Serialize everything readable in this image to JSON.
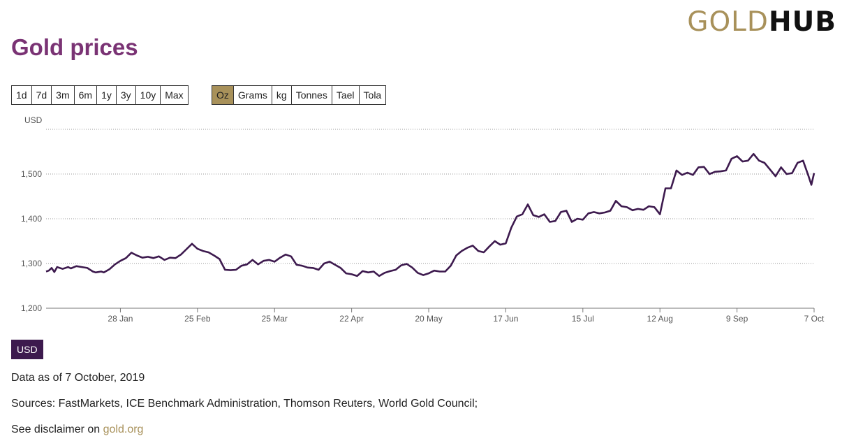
{
  "logo": {
    "part1": "GOLD",
    "part2": "HUB"
  },
  "title": "Gold prices",
  "periods": [
    "1d",
    "7d",
    "3m",
    "6m",
    "1y",
    "3y",
    "10y",
    "Max"
  ],
  "units": [
    "Oz",
    "Grams",
    "kg",
    "Tonnes",
    "Tael",
    "Tola"
  ],
  "active_unit": "Oz",
  "currency": "USD",
  "footer": {
    "as_of_prefix": "Data as of",
    "as_of_date": "7 October, 2019",
    "sources": "Sources: FastMarkets, ICE Benchmark Administration, Thomson Reuters, World Gold Council;",
    "disclaimer_prefix": "See disclaimer on",
    "disclaimer_link": "gold.org"
  },
  "colors": {
    "line": "#3d1a4e",
    "title": "#7a3374",
    "accent": "#a8915a",
    "badge": "#3d1a4e"
  },
  "chart_data": {
    "type": "line",
    "ylabel": "USD",
    "ylim": [
      1200,
      1600
    ],
    "yticks": [
      1200,
      1300,
      1400,
      1500
    ],
    "ytick_labels": [
      "1,200",
      "1,300",
      "1,400",
      "1,500"
    ],
    "grid": true,
    "x_start": "2019-01-01",
    "x_end": "2019-10-07",
    "xticks": [
      {
        "date": "2019-01-28",
        "label": "28 Jan"
      },
      {
        "date": "2019-02-25",
        "label": "25 Feb"
      },
      {
        "date": "2019-03-25",
        "label": "25 Mar"
      },
      {
        "date": "2019-04-22",
        "label": "22 Apr"
      },
      {
        "date": "2019-05-20",
        "label": "20 May"
      },
      {
        "date": "2019-06-17",
        "label": "17 Jun"
      },
      {
        "date": "2019-07-15",
        "label": "15 Jul"
      },
      {
        "date": "2019-08-12",
        "label": "12 Aug"
      },
      {
        "date": "2019-09-09",
        "label": "9 Sep"
      },
      {
        "date": "2019-10-07",
        "label": "7 Oct"
      }
    ],
    "series": [
      {
        "name": "USD",
        "points": [
          [
            "2019-01-01",
            1282
          ],
          [
            "2019-01-02",
            1284
          ],
          [
            "2019-01-03",
            1290
          ],
          [
            "2019-01-04",
            1281
          ],
          [
            "2019-01-05",
            1292
          ],
          [
            "2019-01-07",
            1288
          ],
          [
            "2019-01-09",
            1292
          ],
          [
            "2019-01-10",
            1289
          ],
          [
            "2019-01-12",
            1294
          ],
          [
            "2019-01-14",
            1292
          ],
          [
            "2019-01-16",
            1290
          ],
          [
            "2019-01-18",
            1282
          ],
          [
            "2019-01-19",
            1280
          ],
          [
            "2019-01-21",
            1282
          ],
          [
            "2019-01-22",
            1280
          ],
          [
            "2019-01-24",
            1287
          ],
          [
            "2019-01-26",
            1298
          ],
          [
            "2019-01-28",
            1306
          ],
          [
            "2019-01-30",
            1312
          ],
          [
            "2019-02-01",
            1324
          ],
          [
            "2019-02-03",
            1318
          ],
          [
            "2019-02-05",
            1313
          ],
          [
            "2019-02-07",
            1315
          ],
          [
            "2019-02-09",
            1312
          ],
          [
            "2019-02-11",
            1316
          ],
          [
            "2019-02-13",
            1308
          ],
          [
            "2019-02-15",
            1313
          ],
          [
            "2019-02-17",
            1312
          ],
          [
            "2019-02-19",
            1320
          ],
          [
            "2019-02-21",
            1332
          ],
          [
            "2019-02-23",
            1344
          ],
          [
            "2019-02-25",
            1333
          ],
          [
            "2019-02-27",
            1328
          ],
          [
            "2019-03-01",
            1325
          ],
          [
            "2019-03-03",
            1318
          ],
          [
            "2019-03-05",
            1310
          ],
          [
            "2019-03-07",
            1286
          ],
          [
            "2019-03-09",
            1285
          ],
          [
            "2019-03-11",
            1286
          ],
          [
            "2019-03-13",
            1295
          ],
          [
            "2019-03-15",
            1298
          ],
          [
            "2019-03-17",
            1308
          ],
          [
            "2019-03-19",
            1298
          ],
          [
            "2019-03-21",
            1306
          ],
          [
            "2019-03-23",
            1308
          ],
          [
            "2019-03-25",
            1304
          ],
          [
            "2019-03-27",
            1313
          ],
          [
            "2019-03-29",
            1320
          ],
          [
            "2019-03-31",
            1316
          ],
          [
            "2019-04-02",
            1297
          ],
          [
            "2019-04-04",
            1295
          ],
          [
            "2019-04-06",
            1291
          ],
          [
            "2019-04-08",
            1290
          ],
          [
            "2019-04-10",
            1286
          ],
          [
            "2019-04-12",
            1300
          ],
          [
            "2019-04-14",
            1304
          ],
          [
            "2019-04-16",
            1297
          ],
          [
            "2019-04-18",
            1290
          ],
          [
            "2019-04-20",
            1278
          ],
          [
            "2019-04-22",
            1276
          ],
          [
            "2019-04-24",
            1272
          ],
          [
            "2019-04-26",
            1283
          ],
          [
            "2019-04-28",
            1280
          ],
          [
            "2019-04-30",
            1282
          ],
          [
            "2019-05-02",
            1272
          ],
          [
            "2019-05-04",
            1279
          ],
          [
            "2019-05-06",
            1283
          ],
          [
            "2019-05-08",
            1286
          ],
          [
            "2019-05-10",
            1296
          ],
          [
            "2019-05-12",
            1299
          ],
          [
            "2019-05-14",
            1291
          ],
          [
            "2019-05-16",
            1279
          ],
          [
            "2019-05-18",
            1274
          ],
          [
            "2019-05-20",
            1278
          ],
          [
            "2019-05-22",
            1284
          ],
          [
            "2019-05-24",
            1282
          ],
          [
            "2019-05-26",
            1282
          ],
          [
            "2019-05-28",
            1295
          ],
          [
            "2019-05-30",
            1318
          ],
          [
            "2019-06-01",
            1328
          ],
          [
            "2019-06-03",
            1335
          ],
          [
            "2019-06-05",
            1340
          ],
          [
            "2019-06-07",
            1328
          ],
          [
            "2019-06-09",
            1325
          ],
          [
            "2019-06-11",
            1338
          ],
          [
            "2019-06-13",
            1350
          ],
          [
            "2019-06-15",
            1342
          ],
          [
            "2019-06-17",
            1345
          ],
          [
            "2019-06-19",
            1380
          ],
          [
            "2019-06-21",
            1405
          ],
          [
            "2019-06-23",
            1410
          ],
          [
            "2019-06-25",
            1432
          ],
          [
            "2019-06-27",
            1408
          ],
          [
            "2019-06-29",
            1404
          ],
          [
            "2019-07-01",
            1410
          ],
          [
            "2019-07-03",
            1393
          ],
          [
            "2019-07-05",
            1395
          ],
          [
            "2019-07-07",
            1415
          ],
          [
            "2019-07-09",
            1418
          ],
          [
            "2019-07-11",
            1393
          ],
          [
            "2019-07-13",
            1400
          ],
          [
            "2019-07-15",
            1398
          ],
          [
            "2019-07-17",
            1412
          ],
          [
            "2019-07-19",
            1415
          ],
          [
            "2019-07-21",
            1412
          ],
          [
            "2019-07-23",
            1414
          ],
          [
            "2019-07-25",
            1418
          ],
          [
            "2019-07-27",
            1440
          ],
          [
            "2019-07-29",
            1428
          ],
          [
            "2019-07-31",
            1426
          ],
          [
            "2019-08-02",
            1419
          ],
          [
            "2019-08-04",
            1422
          ],
          [
            "2019-08-06",
            1420
          ],
          [
            "2019-08-08",
            1428
          ],
          [
            "2019-08-10",
            1426
          ],
          [
            "2019-08-12",
            1410
          ],
          [
            "2019-08-14",
            1468
          ],
          [
            "2019-08-16",
            1468
          ],
          [
            "2019-08-18",
            1508
          ],
          [
            "2019-08-20",
            1498
          ],
          [
            "2019-08-22",
            1503
          ],
          [
            "2019-08-24",
            1498
          ],
          [
            "2019-08-26",
            1515
          ],
          [
            "2019-08-28",
            1516
          ],
          [
            "2019-08-30",
            1500
          ],
          [
            "2019-09-01",
            1505
          ],
          [
            "2019-09-03",
            1506
          ],
          [
            "2019-09-05",
            1508
          ],
          [
            "2019-09-07",
            1534
          ],
          [
            "2019-09-09",
            1540
          ],
          [
            "2019-09-11",
            1528
          ],
          [
            "2019-09-13",
            1530
          ],
          [
            "2019-09-15",
            1545
          ],
          [
            "2019-09-17",
            1530
          ],
          [
            "2019-09-19",
            1525
          ],
          [
            "2019-09-21",
            1510
          ],
          [
            "2019-09-23",
            1495
          ],
          [
            "2019-09-25",
            1515
          ],
          [
            "2019-09-27",
            1500
          ],
          [
            "2019-09-29",
            1502
          ],
          [
            "2019-10-01",
            1525
          ],
          [
            "2019-10-03",
            1530
          ],
          [
            "2019-10-05",
            1495
          ],
          [
            "2019-10-06",
            1476
          ],
          [
            "2019-10-07",
            1502
          ]
        ]
      }
    ]
  }
}
